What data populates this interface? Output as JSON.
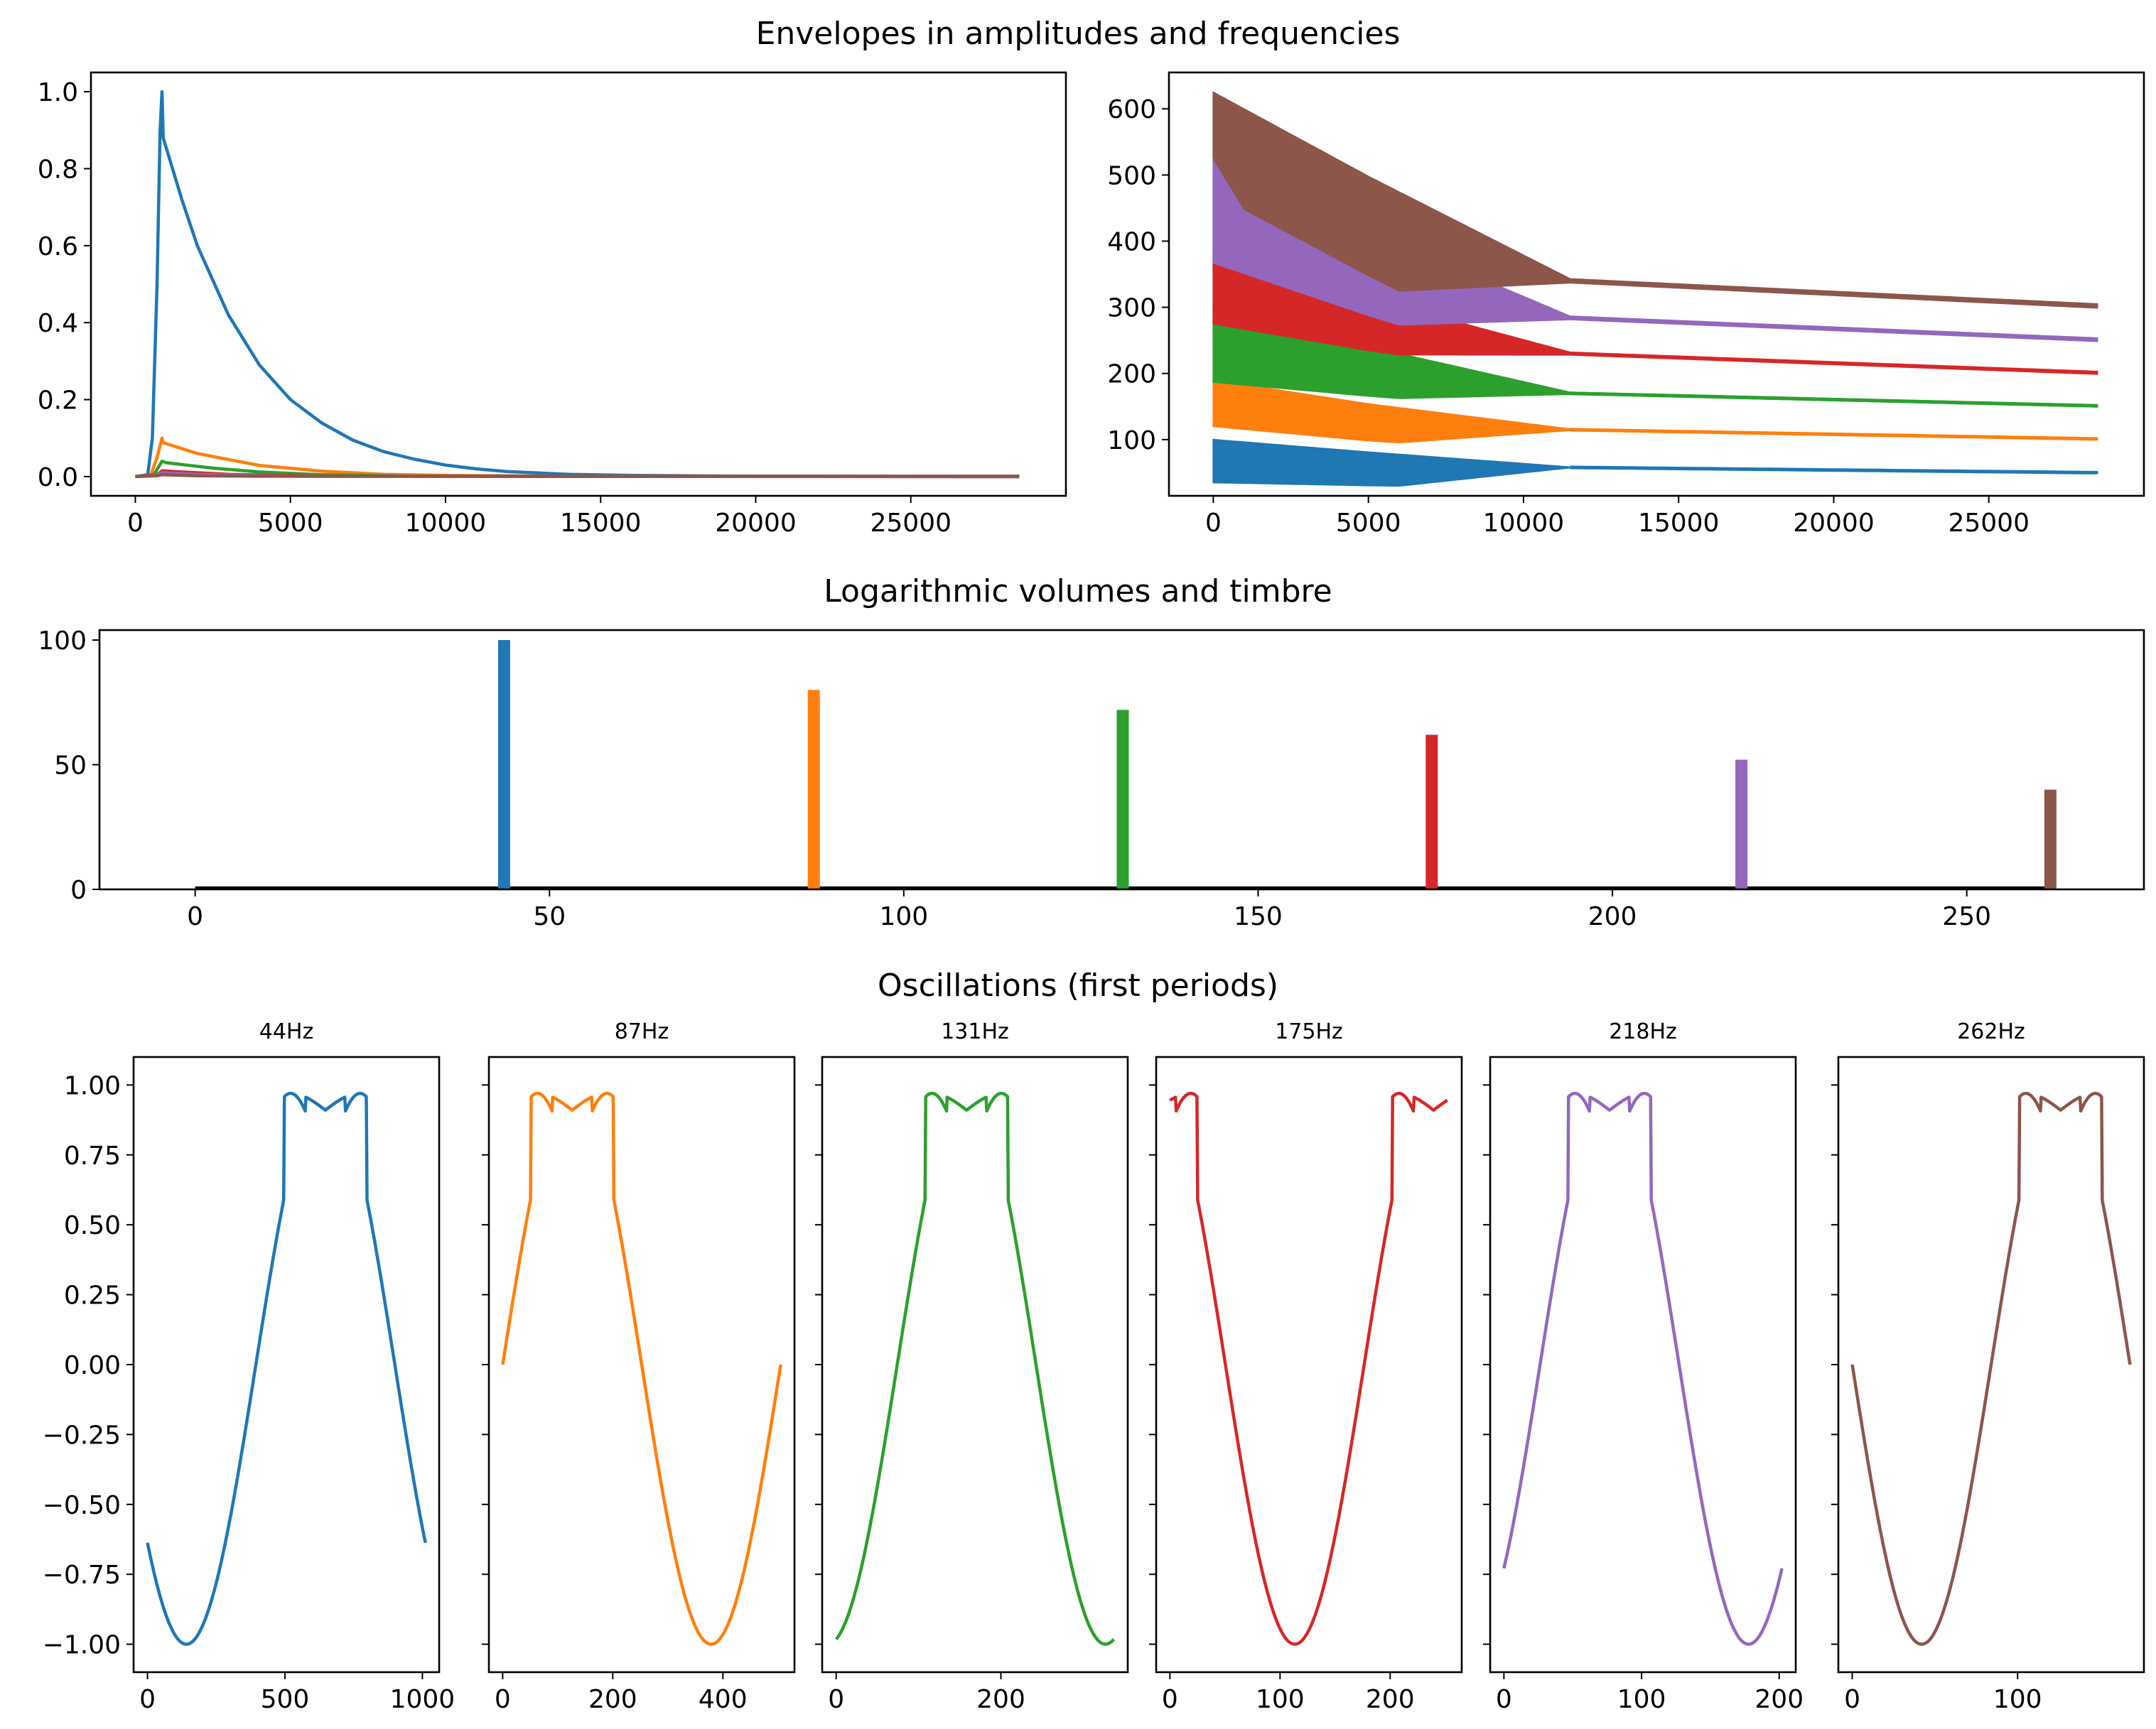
{
  "chart_data": [
    {
      "type": "line",
      "title": "Envelopes in amplitudes and frequencies",
      "panel": "amplitude-envelopes",
      "xlim": [
        -1430,
        30000
      ],
      "ylim": [
        -0.05,
        1.05
      ],
      "xticks": [
        0,
        5000,
        10000,
        15000,
        20000,
        25000
      ],
      "yticks": [
        0.0,
        0.2,
        0.4,
        0.6,
        0.8,
        1.0
      ],
      "xticklabels": [
        "0",
        "5000",
        "10000",
        "15000",
        "20000",
        "25000"
      ],
      "yticklabels": [
        "0.0",
        "0.2",
        "0.4",
        "0.6",
        "0.8",
        "1.0"
      ],
      "series": [
        {
          "color": "#1f77b4",
          "points": [
            [
              0,
              0
            ],
            [
              400,
              0.005
            ],
            [
              550,
              0.1
            ],
            [
              700,
              0.5
            ],
            [
              800,
              0.9
            ],
            [
              860,
              1.0
            ],
            [
              900,
              0.88
            ],
            [
              1200,
              0.8
            ],
            [
              1500,
              0.72
            ],
            [
              2000,
              0.6
            ],
            [
              3000,
              0.42
            ],
            [
              4000,
              0.29
            ],
            [
              5000,
              0.2
            ],
            [
              6000,
              0.14
            ],
            [
              7000,
              0.095
            ],
            [
              8000,
              0.065
            ],
            [
              9000,
              0.045
            ],
            [
              10000,
              0.03
            ],
            [
              11000,
              0.02
            ],
            [
              12000,
              0.013
            ],
            [
              14000,
              0.006
            ],
            [
              16000,
              0.003
            ],
            [
              20000,
              0.001
            ],
            [
              28500,
              0
            ]
          ]
        },
        {
          "color": "#ff7f0e",
          "points": [
            [
              0,
              0
            ],
            [
              500,
              0.004
            ],
            [
              700,
              0.05
            ],
            [
              860,
              0.1
            ],
            [
              900,
              0.088
            ],
            [
              2000,
              0.06
            ],
            [
              4000,
              0.029
            ],
            [
              6000,
              0.014
            ],
            [
              8000,
              0.006
            ],
            [
              10000,
              0.003
            ],
            [
              14000,
              0.001
            ],
            [
              28500,
              0
            ]
          ]
        },
        {
          "color": "#2ca02c",
          "points": [
            [
              0,
              0
            ],
            [
              600,
              0.005
            ],
            [
              860,
              0.04
            ],
            [
              1000,
              0.036
            ],
            [
              2500,
              0.022
            ],
            [
              4000,
              0.012
            ],
            [
              6000,
              0.005
            ],
            [
              9000,
              0.001
            ],
            [
              28500,
              0
            ]
          ]
        },
        {
          "color": "#d62728",
          "points": [
            [
              0,
              0
            ],
            [
              700,
              0.004
            ],
            [
              860,
              0.015
            ],
            [
              1500,
              0.012
            ],
            [
              3000,
              0.006
            ],
            [
              6000,
              0.001
            ],
            [
              28500,
              0
            ]
          ]
        },
        {
          "color": "#9467bd",
          "points": [
            [
              0,
              0
            ],
            [
              700,
              0.003
            ],
            [
              860,
              0.01
            ],
            [
              2000,
              0.006
            ],
            [
              5000,
              0.001
            ],
            [
              28500,
              0
            ]
          ]
        },
        {
          "color": "#8c564b",
          "points": [
            [
              0,
              0
            ],
            [
              700,
              0.002
            ],
            [
              860,
              0.005
            ],
            [
              2000,
              0.002
            ],
            [
              4000,
              0.001
            ],
            [
              28500,
              0.001
            ]
          ]
        }
      ]
    },
    {
      "type": "line",
      "panel": "frequency-envelopes",
      "xlim": [
        -1430,
        30000
      ],
      "ylim": [
        15,
        655
      ],
      "xticks": [
        0,
        5000,
        10000,
        15000,
        20000,
        25000
      ],
      "yticks": [
        100,
        200,
        300,
        400,
        500,
        600
      ],
      "xticklabels": [
        "0",
        "5000",
        "10000",
        "15000",
        "20000",
        "25000"
      ],
      "yticklabels": [
        "100",
        "200",
        "300",
        "400",
        "500",
        "600"
      ],
      "series": [
        {
          "color": "#1f77b4",
          "base": [
            [
              0,
              95
            ],
            [
              5000,
              78
            ],
            [
              11500,
              58
            ],
            [
              28500,
              50
            ]
          ],
          "vib_top": [
            [
              0,
              5
            ],
            [
              11500,
              0.5
            ]
          ],
          "vib_bot": [
            [
              0,
              60
            ],
            [
              6000,
              45
            ],
            [
              11500,
              0.5
            ]
          ]
        },
        {
          "color": "#ff7f0e",
          "base": [
            [
              0,
              175
            ],
            [
              5000,
              145
            ],
            [
              11500,
              115
            ],
            [
              28500,
              101
            ]
          ],
          "vib_top": [
            [
              0,
              15
            ],
            [
              11500,
              1
            ]
          ],
          "vib_bot": [
            [
              0,
              55
            ],
            [
              6000,
              45
            ],
            [
              11500,
              1
            ]
          ]
        },
        {
          "color": "#2ca02c",
          "base": [
            [
              0,
              262
            ],
            [
              5000,
              220
            ],
            [
              11500,
              170
            ],
            [
              28500,
              151
            ]
          ],
          "vib_top": [
            [
              0,
              35
            ],
            [
              11500,
              1.5
            ]
          ],
          "vib_bot": [
            [
              0,
              75
            ],
            [
              6000,
              50
            ],
            [
              11500,
              1.5
            ]
          ]
        },
        {
          "color": "#d62728",
          "base": [
            [
              0,
              350
            ],
            [
              5000,
              293
            ],
            [
              11500,
              230
            ],
            [
              28500,
              201
            ]
          ],
          "vib_top": [
            [
              0,
              35
            ],
            [
              11500,
              2
            ]
          ],
          "vib_bot": [
            [
              0,
              75
            ],
            [
              6000,
              55
            ],
            [
              11500,
              2
            ]
          ]
        },
        {
          "color": "#9467bd",
          "base": [
            [
              0,
              437
            ],
            [
              5000,
              366
            ],
            [
              11500,
              284
            ],
            [
              28500,
              251
            ]
          ],
          "vib_top": [
            [
              0,
              85
            ],
            [
              11500,
              2.5
            ]
          ],
          "vib_bot": [
            [
              0,
              70
            ],
            [
              6000,
              80
            ],
            [
              11500,
              2.5
            ]
          ]
        },
        {
          "color": "#8c564b",
          "base": [
            [
              0,
              525
            ],
            [
              5000,
              440
            ],
            [
              11500,
              340
            ],
            [
              28500,
              302
            ]
          ],
          "vib_top": [
            [
              0,
              100
            ],
            [
              11500,
              3
            ]
          ],
          "vib_bot": [
            [
              0,
              0
            ],
            [
              1000,
              60
            ],
            [
              6000,
              100
            ],
            [
              11500,
              3
            ]
          ]
        }
      ]
    },
    {
      "type": "bar",
      "title": "Logarithmic volumes and timbre",
      "panel": "volumes",
      "xlim": [
        -13.5,
        275
      ],
      "ylim": [
        0,
        104
      ],
      "xticks": [
        0,
        50,
        100,
        150,
        200,
        250
      ],
      "yticks": [
        0,
        50,
        100
      ],
      "xticklabels": [
        "0",
        "50",
        "100",
        "150",
        "200",
        "250"
      ],
      "yticklabels": [
        "0",
        "50",
        "100"
      ],
      "baseline": [
        0,
        262
      ],
      "bars": [
        {
          "x": 43.6,
          "value": 100,
          "color": "#1f77b4"
        },
        {
          "x": 87.3,
          "value": 80,
          "color": "#ff7f0e"
        },
        {
          "x": 130.9,
          "value": 72,
          "color": "#2ca02c"
        },
        {
          "x": 174.5,
          "value": 62,
          "color": "#d62728"
        },
        {
          "x": 218.2,
          "value": 52,
          "color": "#9467bd"
        },
        {
          "x": 261.8,
          "value": 40,
          "color": "#8c564b"
        }
      ]
    },
    {
      "type": "line",
      "title": "Oscillations (first periods)",
      "panel": "oscillations",
      "ylim": [
        -1.1,
        1.1
      ],
      "yticks": [
        1.0,
        0.75,
        0.5,
        0.25,
        0.0,
        -0.25,
        -0.5,
        -0.75,
        -1.0
      ],
      "yticklabels": [
        "1.00",
        "0.75",
        "0.50",
        "0.25",
        "0.00",
        "−0.25",
        "−0.50",
        "−0.75",
        "−1.00"
      ],
      "subplots": [
        {
          "title": "44Hz",
          "color": "#1f77b4",
          "N": 1011,
          "phase": 0.61,
          "xlim": [
            -50.5,
            1061
          ],
          "xticks": [
            0,
            500,
            1000
          ],
          "xticklabels": [
            "0",
            "500",
            "1000"
          ]
        },
        {
          "title": "87Hz",
          "color": "#ff7f0e",
          "N": 505,
          "phase": 0.0,
          "xlim": [
            -25,
            530
          ],
          "xticks": [
            0,
            200,
            400
          ],
          "xticklabels": [
            "0",
            "200",
            "400"
          ]
        },
        {
          "title": "131Hz",
          "color": "#2ca02c",
          "N": 337,
          "phase": 0.78,
          "xlim": [
            -17,
            354
          ],
          "xticks": [
            0,
            200
          ],
          "xticklabels": [
            "0",
            "200"
          ]
        },
        {
          "title": "175Hz",
          "color": "#d62728",
          "N": 252,
          "phase": 0.3,
          "xlim": [
            -12.5,
            265
          ],
          "xticks": [
            0,
            100,
            200
          ],
          "xticklabels": [
            "0",
            "100",
            "200"
          ]
        },
        {
          "title": "218Hz",
          "color": "#9467bd",
          "N": 202,
          "phase": 0.87,
          "xlim": [
            -10,
            212
          ],
          "xticks": [
            0,
            100,
            200
          ],
          "xticklabels": [
            "0",
            "100",
            "200"
          ]
        },
        {
          "title": "262Hz",
          "color": "#8c564b",
          "N": 168,
          "phase": 0.5,
          "xlim": [
            -8.4,
            176.4
          ],
          "xticks": [
            0,
            100
          ],
          "xticklabels": [
            "0",
            "100"
          ]
        }
      ]
    }
  ]
}
